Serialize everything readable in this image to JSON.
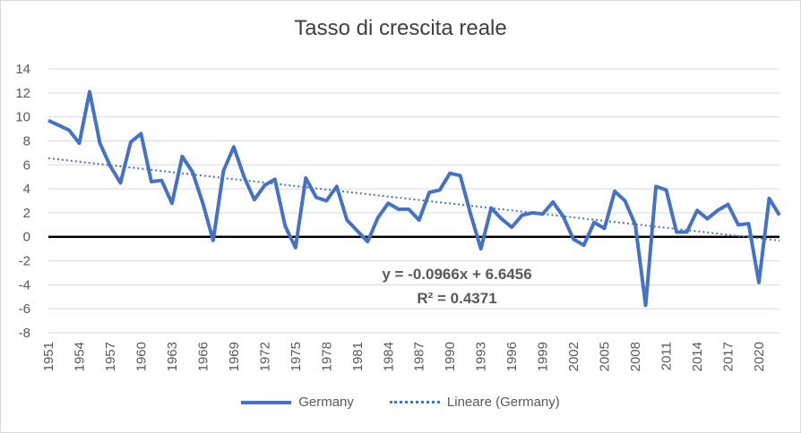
{
  "chart_data": {
    "type": "line",
    "title": "Tasso di crescita reale",
    "xlabel": "",
    "ylabel": "",
    "ylim": [
      -8,
      14
    ],
    "yticks": [
      14,
      12,
      10,
      8,
      6,
      4,
      2,
      0,
      -2,
      -4,
      -6,
      -8
    ],
    "xticks": [
      "1951",
      "1954",
      "1957",
      "1960",
      "1963",
      "1966",
      "1969",
      "1972",
      "1975",
      "1978",
      "1981",
      "1984",
      "1987",
      "1990",
      "1993",
      "1996",
      "1999",
      "2002",
      "2005",
      "2008",
      "2011",
      "2014",
      "2017",
      "2020"
    ],
    "x": [
      1951,
      1952,
      1953,
      1954,
      1955,
      1956,
      1957,
      1958,
      1959,
      1960,
      1961,
      1962,
      1963,
      1964,
      1965,
      1966,
      1967,
      1968,
      1969,
      1970,
      1971,
      1972,
      1973,
      1974,
      1975,
      1976,
      1977,
      1978,
      1979,
      1980,
      1981,
      1982,
      1983,
      1984,
      1985,
      1986,
      1987,
      1988,
      1989,
      1990,
      1991,
      1992,
      1993,
      1994,
      1995,
      1996,
      1997,
      1998,
      1999,
      2000,
      2001,
      2002,
      2003,
      2004,
      2005,
      2006,
      2007,
      2008,
      2009,
      2010,
      2011,
      2012,
      2013,
      2014,
      2015,
      2016,
      2017,
      2018,
      2019,
      2020,
      2021,
      2022
    ],
    "series": [
      {
        "name": "Germany",
        "values": [
          9.7,
          9.3,
          8.9,
          7.8,
          12.1,
          7.8,
          5.9,
          4.5,
          7.9,
          8.6,
          4.6,
          4.7,
          2.8,
          6.7,
          5.4,
          2.8,
          -0.3,
          5.5,
          7.5,
          5.0,
          3.1,
          4.3,
          4.8,
          0.9,
          -0.9,
          4.9,
          3.3,
          3.0,
          4.2,
          1.4,
          0.5,
          -0.4,
          1.6,
          2.8,
          2.3,
          2.3,
          1.4,
          3.7,
          3.9,
          5.3,
          5.1,
          1.9,
          -1.0,
          2.4,
          1.5,
          0.8,
          1.8,
          2.0,
          1.9,
          2.9,
          1.7,
          -0.2,
          -0.7,
          1.2,
          0.7,
          3.8,
          3.0,
          1.0,
          -5.7,
          4.2,
          3.9,
          0.4,
          0.4,
          2.2,
          1.5,
          2.2,
          2.7,
          1.0,
          1.1,
          -3.8,
          3.2,
          1.8
        ]
      }
    ],
    "trendline": {
      "name": "Lineare (Germany)",
      "slope": -0.0966,
      "intercept": 6.6456,
      "equation": "y = -0.0966x + 6.6456",
      "r2": "R² = 0.4371"
    },
    "legend": [
      "Germany",
      "Lineare (Germany)"
    ],
    "legend_position": "bottom",
    "grid": "horizontal",
    "colors": {
      "series": "#4472c4",
      "zero_line": "#000000",
      "grid": "#d9d9d9"
    }
  }
}
